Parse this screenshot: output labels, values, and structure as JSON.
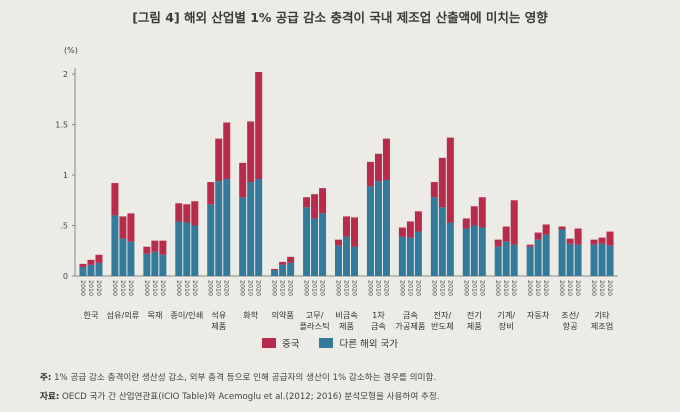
{
  "title": "[그림 4] 해외 산업별 1% 공급 감소 충격이 국내 제조업 산출액에 미치는 영향",
  "unit": "(%)",
  "legend": {
    "china": "중국",
    "others": "다른 해외 국가"
  },
  "colors": {
    "china": "#b72c4d",
    "others": "#347a9b",
    "axis": "#888888",
    "background": "#ecebe6"
  },
  "notes": {
    "note_label": "주:",
    "note_text": "1% 공급 감소 충격이란 생산성 감소, 외부 충격 등으로 인해 공급자의 생산이 1% 감소하는 경우를 의미함.",
    "source_label": "자료:",
    "source_text": "OECD 국가 간 산업연관표(ICIO Table)와 Acemoglu et al.(2012; 2016) 분석모형을 사용하여 추정."
  },
  "chart_data": {
    "type": "bar",
    "stacked": true,
    "title": "[그림 4] 해외 산업별 1% 공급 감소 충격이 국내 제조업 산출액에 미치는 영향",
    "ylabel": "(%)",
    "ylim": [
      0,
      2
    ],
    "yticks": [
      "0",
      ".5",
      "1",
      "1.5",
      "2"
    ],
    "ytick_values": [
      0,
      0.5,
      1,
      1.5,
      2
    ],
    "years": [
      "2000",
      "2010",
      "2020"
    ],
    "categories": [
      "한국",
      "섬유/의류",
      "목재",
      "종이/인쇄",
      "석유 제품",
      "화학",
      "의약품",
      "고무/ 플라스틱",
      "비금속 제품",
      "1차 금속",
      "금속 가공제품",
      "전자/ 반도체",
      "전기 제품",
      "기계/ 장비",
      "자동차",
      "조선/ 항공",
      "기타 제조업"
    ],
    "legend_position": "bottom",
    "grid": false,
    "series": [
      {
        "name": "다른 해외 국가",
        "values": [
          [
            0.09,
            0.11,
            0.13
          ],
          [
            0.6,
            0.37,
            0.34
          ],
          [
            0.22,
            0.24,
            0.21
          ],
          [
            0.54,
            0.53,
            0.5
          ],
          [
            0.71,
            0.94,
            0.96
          ],
          [
            0.78,
            0.93,
            0.96
          ],
          [
            0.06,
            0.11,
            0.13
          ],
          [
            0.68,
            0.57,
            0.62
          ],
          [
            0.3,
            0.39,
            0.29
          ],
          [
            0.89,
            0.94,
            0.95
          ],
          [
            0.39,
            0.38,
            0.44
          ],
          [
            0.78,
            0.68,
            0.53
          ],
          [
            0.47,
            0.5,
            0.48
          ],
          [
            0.29,
            0.34,
            0.31
          ],
          [
            0.29,
            0.36,
            0.41
          ],
          [
            0.46,
            0.32,
            0.31
          ],
          [
            0.31,
            0.32,
            0.3
          ]
        ]
      },
      {
        "name": "중국",
        "values": [
          [
            0.03,
            0.05,
            0.08
          ],
          [
            0.32,
            0.22,
            0.28
          ],
          [
            0.07,
            0.11,
            0.14
          ],
          [
            0.18,
            0.18,
            0.24
          ],
          [
            0.22,
            0.42,
            0.56
          ],
          [
            0.34,
            0.6,
            1.06
          ],
          [
            0.01,
            0.03,
            0.06
          ],
          [
            0.1,
            0.24,
            0.25
          ],
          [
            0.06,
            0.2,
            0.29
          ],
          [
            0.24,
            0.27,
            0.41
          ],
          [
            0.09,
            0.16,
            0.2
          ],
          [
            0.15,
            0.49,
            0.84
          ],
          [
            0.1,
            0.19,
            0.3
          ],
          [
            0.07,
            0.15,
            0.44
          ],
          [
            0.02,
            0.07,
            0.1
          ],
          [
            0.03,
            0.05,
            0.16
          ],
          [
            0.05,
            0.06,
            0.14
          ]
        ]
      }
    ]
  }
}
